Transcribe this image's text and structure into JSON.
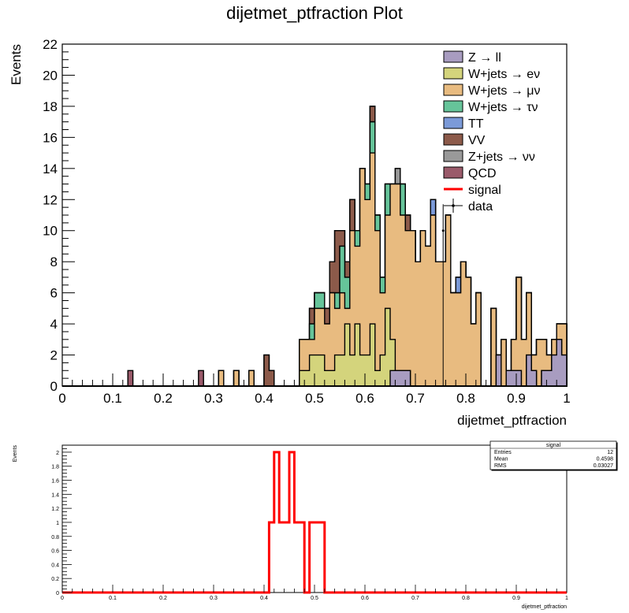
{
  "title": "dijetmet_ptfraction Plot",
  "chart_data": [
    {
      "type": "stacked-histogram",
      "title": "dijetmet_ptfraction Plot",
      "xlabel": "dijetmet_ptfraction",
      "ylabel": "Events",
      "xlim": [
        0,
        1
      ],
      "ylim": [
        0,
        22
      ],
      "bins": 100,
      "xticks": [
        0,
        0.1,
        0.2,
        0.3,
        0.4,
        0.5,
        0.6,
        0.7,
        0.8,
        0.9,
        1
      ],
      "xtick_labels": [
        "0",
        "0.1",
        "0.2",
        "0.3",
        "0.4",
        "0.5",
        "0.6",
        "0.7",
        "0.8",
        "0.9",
        "1"
      ],
      "yticks": [
        0,
        2,
        4,
        6,
        8,
        10,
        12,
        14,
        16,
        18,
        20,
        22
      ],
      "ytick_labels": [
        "0",
        "2",
        "4",
        "6",
        "8",
        "10",
        "12",
        "14",
        "16",
        "18",
        "20",
        "22"
      ],
      "legend_position": "top-right",
      "legend": [
        {
          "label": "Z → ll",
          "color": "#a89cc0",
          "style": "box"
        },
        {
          "label": "W+jets → eν",
          "color": "#d4d47c",
          "style": "box"
        },
        {
          "label": "W+jets → μν",
          "color": "#e8bb80",
          "style": "box"
        },
        {
          "label": "W+jets → τν",
          "color": "#66c49a",
          "style": "box"
        },
        {
          "label": "TT",
          "color": "#7b9ad8",
          "style": "box"
        },
        {
          "label": "VV",
          "color": "#8c5a4a",
          "style": "box"
        },
        {
          "label": "Z+jets → νν",
          "color": "#999999",
          "style": "box"
        },
        {
          "label": "QCD",
          "color": "#9a5a6a",
          "style": "box"
        },
        {
          "label": "signal",
          "color": "#ff0000",
          "style": "line"
        },
        {
          "label": "data",
          "color": "#000000",
          "style": "marker"
        }
      ],
      "series": [
        {
          "name": "Z → ll",
          "color": "#a89cc0",
          "bin_start": 45,
          "values": [
            0,
            0,
            0,
            0,
            0,
            0,
            0,
            0,
            0,
            0,
            0,
            0,
            0,
            0,
            0,
            0,
            0,
            0,
            0,
            0,
            1,
            1,
            1,
            1,
            0,
            0,
            0,
            0,
            0,
            0,
            0,
            0,
            0,
            0,
            0,
            0,
            0,
            0,
            0,
            0,
            0,
            2,
            0,
            1,
            1,
            1,
            0,
            2,
            1,
            0,
            1,
            1,
            2,
            3,
            2,
            1,
            1,
            3,
            2,
            1,
            1,
            2,
            1,
            3,
            1
          ]
        },
        {
          "name": "W+jets → eν",
          "color": "#d4d47c",
          "bin_start": 45,
          "values": [
            0,
            0,
            1,
            1,
            2,
            2,
            2,
            1,
            1,
            2,
            2,
            4,
            2,
            4,
            2,
            2,
            4,
            1,
            2,
            5,
            2,
            0,
            0,
            0,
            0,
            0,
            0,
            0,
            0,
            0,
            0,
            0,
            0,
            0,
            0,
            0,
            0,
            0,
            0,
            0,
            0,
            0,
            0,
            0,
            0,
            0,
            0,
            0,
            0,
            0,
            0,
            0,
            0,
            0,
            0,
            0,
            0,
            0,
            0,
            0,
            0,
            0,
            0,
            0,
            0
          ]
        },
        {
          "name": "W+jets → μν",
          "color": "#e8bb80",
          "bin_start": 45,
          "values": [
            0,
            0,
            2,
            2,
            1,
            3,
            3,
            3,
            5,
            3,
            4,
            1,
            8,
            5,
            12,
            10,
            11,
            9,
            4,
            6,
            10,
            12,
            10,
            9,
            10,
            8,
            10,
            9,
            11,
            8,
            8,
            11,
            6,
            6,
            8,
            7,
            4,
            6,
            0,
            0,
            5,
            0,
            3,
            0,
            2,
            6,
            3,
            4,
            1,
            3,
            2,
            1,
            1,
            1,
            2,
            1,
            1,
            1,
            1,
            2,
            2,
            7,
            1,
            0,
            0
          ]
        },
        {
          "name": "W+jets → τν",
          "color": "#66c49a",
          "bin_start": 45,
          "values": [
            0,
            0,
            0,
            0,
            1,
            1,
            1,
            0,
            0,
            1,
            3,
            2,
            0,
            1,
            0,
            1,
            2,
            1,
            1,
            2,
            0,
            0,
            2,
            0,
            0,
            0,
            0,
            0,
            0,
            0,
            0,
            0,
            0,
            0,
            0,
            0,
            0,
            0,
            0,
            0,
            0,
            0,
            0,
            0,
            0,
            0,
            0,
            0,
            0,
            0,
            0,
            0,
            0,
            0,
            0,
            0,
            0,
            0,
            0,
            0,
            0,
            0,
            0,
            0,
            0
          ]
        },
        {
          "name": "TT",
          "color": "#7b9ad8",
          "bin_start": 45,
          "values": [
            0,
            0,
            0,
            0,
            0,
            0,
            0,
            0,
            0,
            0,
            0,
            0,
            0,
            0,
            0,
            0,
            0,
            0,
            0,
            0,
            0,
            0,
            0,
            0,
            0,
            0,
            0,
            0,
            1,
            0,
            0,
            0,
            0,
            1,
            0,
            0,
            0,
            0,
            0,
            0,
            0,
            0,
            0,
            0,
            0,
            0,
            0,
            0,
            0,
            0,
            0,
            0,
            0,
            0,
            0,
            0,
            0,
            0,
            0,
            0,
            0,
            0,
            0,
            0,
            0
          ]
        },
        {
          "name": "VV",
          "color": "#8c5a4a",
          "bin_start": 45,
          "values": [
            0,
            0,
            0,
            0,
            1,
            0,
            0,
            1,
            2,
            4,
            1,
            1,
            2,
            0,
            0,
            0,
            1,
            0,
            0,
            0,
            0,
            0,
            0,
            1,
            0,
            0,
            0,
            0,
            0,
            0,
            0,
            0,
            0,
            0,
            0,
            0,
            0,
            0,
            0,
            0,
            0,
            0,
            0,
            0,
            0,
            0,
            0,
            0,
            0,
            0,
            0,
            0,
            0,
            0,
            0,
            0,
            0,
            0,
            0,
            0,
            0,
            0,
            0,
            0,
            0
          ]
        },
        {
          "name": "Z+jets → νν",
          "color": "#999999",
          "bin_start": 45,
          "values": [
            0,
            0,
            0,
            0,
            0,
            0,
            0,
            0,
            0,
            0,
            0,
            0,
            0,
            0,
            0,
            0,
            0,
            0,
            0,
            0,
            0,
            1,
            0,
            0,
            0,
            0,
            0,
            0,
            0,
            0,
            0,
            0,
            0,
            0,
            0,
            0,
            0,
            0,
            0,
            0,
            0,
            0,
            0,
            0,
            0,
            0,
            0,
            0,
            0,
            0,
            0,
            0,
            0,
            0,
            0,
            0,
            0,
            0,
            0,
            0,
            0,
            0,
            0,
            0,
            0
          ]
        },
        {
          "name": "QCD",
          "color": "#9a5a6a",
          "bin_start": 13,
          "values": [
            1,
            0,
            0,
            0,
            0,
            0,
            0,
            0,
            0,
            0,
            0,
            0,
            0,
            0,
            1
          ]
        }
      ],
      "extra_low_bins": [
        {
          "name": "W+jets → μν",
          "bins": [
            31,
            34,
            37
          ],
          "values": [
            1,
            1,
            1
          ]
        },
        {
          "name": "VV",
          "bins": [
            40,
            41
          ],
          "values": [
            2,
            1
          ]
        }
      ],
      "data_points": [
        {
          "x": 0.755,
          "y": 10,
          "yerr": 0
        }
      ]
    },
    {
      "type": "histogram",
      "title": "signal",
      "xlabel": "dijetmet_ptfraction",
      "ylabel": "Events",
      "xlim": [
        0,
        1
      ],
      "ylim": [
        0,
        2.1
      ],
      "xticks": [
        0,
        0.1,
        0.2,
        0.3,
        0.4,
        0.5,
        0.6,
        0.7,
        0.8,
        0.9,
        1
      ],
      "xtick_labels": [
        "0",
        "0.1",
        "0.2",
        "0.3",
        "0.4",
        "0.5",
        "0.6",
        "0.7",
        "0.8",
        "0.9",
        "1"
      ],
      "yticks": [
        0,
        0.2,
        0.4,
        0.6,
        0.8,
        1,
        1.2,
        1.4,
        1.6,
        1.8,
        2
      ],
      "ytick_labels": [
        "0",
        "0.2",
        "0.4",
        "0.6",
        "0.8",
        "1",
        "1.2",
        "1.4",
        "1.6",
        "1.8",
        "2"
      ],
      "color": "#ff0000",
      "bin_edges": [
        0,
        0.41,
        0.42,
        0.43,
        0.44,
        0.45,
        0.46,
        0.47,
        0.48,
        0.49,
        0.5,
        0.51,
        0.52,
        1
      ],
      "values": [
        0,
        1,
        2,
        1,
        1,
        2,
        1,
        1,
        0,
        1,
        1,
        1,
        0
      ],
      "stats": {
        "title": "signal",
        "rows": [
          {
            "label": "Entries",
            "value": "12"
          },
          {
            "label": "Mean",
            "value": "0.4598"
          },
          {
            "label": "RMS",
            "value": "0.03027"
          }
        ]
      }
    }
  ]
}
